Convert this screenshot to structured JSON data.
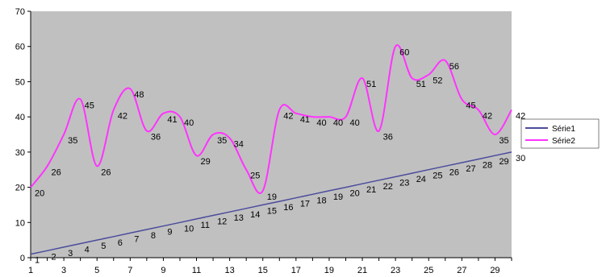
{
  "chart_data": {
    "type": "line",
    "x": [
      1,
      2,
      3,
      4,
      5,
      6,
      7,
      8,
      9,
      10,
      11,
      12,
      13,
      14,
      15,
      16,
      17,
      18,
      19,
      20,
      21,
      22,
      23,
      24,
      25,
      26,
      27,
      28,
      29,
      30
    ],
    "x_tick_labels": [
      "1",
      "3",
      "5",
      "7",
      "9",
      "11",
      "13",
      "15",
      "17",
      "19",
      "21",
      "23",
      "25",
      "27",
      "29"
    ],
    "y_tick_labels": [
      "0",
      "10",
      "20",
      "30",
      "40",
      "50",
      "60",
      "70"
    ],
    "ylim": [
      0,
      70
    ],
    "xlim": [
      1,
      30
    ],
    "grid": false,
    "plot_background": "#c0c0c0",
    "legend_position": "right",
    "series": [
      {
        "name": "Série1",
        "color": "#4b4b9e",
        "values": [
          1,
          2,
          3,
          4,
          5,
          6,
          7,
          8,
          9,
          10,
          11,
          12,
          13,
          14,
          15,
          16,
          17,
          18,
          19,
          20,
          21,
          22,
          23,
          24,
          25,
          26,
          27,
          28,
          29,
          30
        ]
      },
      {
        "name": "Série2",
        "color": "#ff33ff",
        "values": [
          20,
          26,
          35,
          45,
          26,
          42,
          48,
          36,
          41,
          40,
          29,
          35,
          34,
          25,
          19,
          42,
          41,
          40,
          40,
          40,
          51,
          36,
          60,
          51,
          52,
          56,
          45,
          42,
          35,
          42
        ]
      }
    ]
  }
}
